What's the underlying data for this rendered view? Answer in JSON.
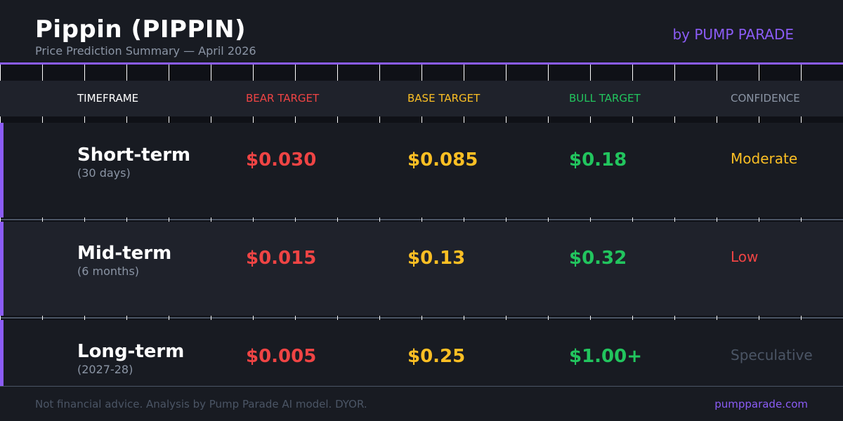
{
  "header": {
    "title": "Pippin (PIPPIN)",
    "subtitle": "Price Prediction Summary — April 2026",
    "brand": "by PUMP PARADE"
  },
  "colors": {
    "accent": "#8b5cf6",
    "bear": "#ef4444",
    "base": "#fbbf24",
    "bull": "#22c55e",
    "muted": "#8b95a5",
    "speculative": "#4b5565"
  },
  "table": {
    "headers": {
      "timeframe": "TIMEFRAME",
      "bear": "BEAR TARGET",
      "base": "BASE TARGET",
      "bull": "BULL TARGET",
      "confidence": "CONFIDENCE"
    },
    "rows": [
      {
        "name": "Short-term",
        "period": "(30 days)",
        "bear": "$0.030",
        "base": "$0.085",
        "bull": "$0.18",
        "confidence": "Moderate"
      },
      {
        "name": "Mid-term",
        "period": "(6 months)",
        "bear": "$0.015",
        "base": "$0.13",
        "bull": "$0.32",
        "confidence": "Low"
      },
      {
        "name": "Long-term",
        "period": "(2027-28)",
        "bear": "$0.005",
        "base": "$0.25",
        "bull": "$1.00+",
        "confidence": "Speculative"
      }
    ]
  },
  "footer": {
    "disclaimer": "Not financial advice. Analysis by Pump Parade AI model. DYOR.",
    "site": "pumpparade.com"
  }
}
